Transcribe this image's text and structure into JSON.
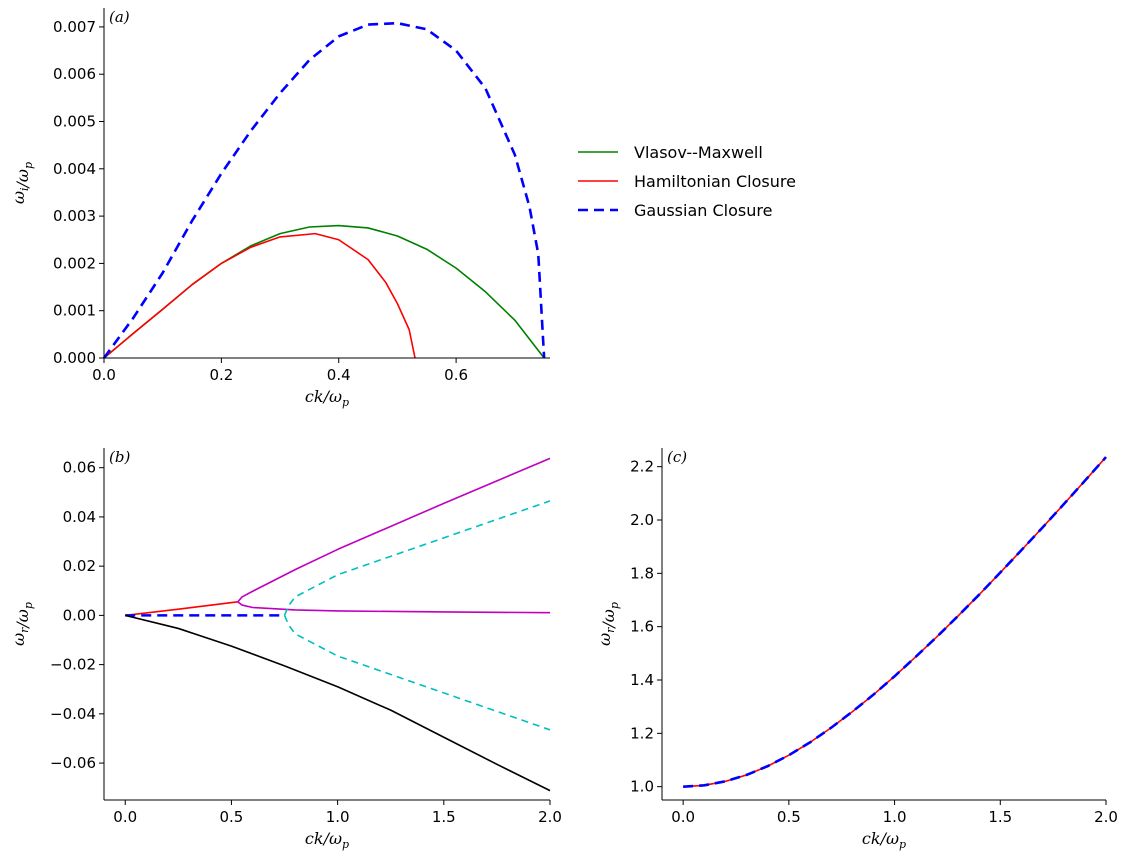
{
  "chart_data": [
    {
      "id": "a",
      "type": "line",
      "panel_label": "(a)",
      "xlabel": "ck/ω_p",
      "ylabel": "ω_i/ω_p",
      "xlim": [
        0,
        0.76
      ],
      "ylim": [
        0,
        0.0074
      ],
      "xticks": [
        0,
        0.2,
        0.4,
        0.6
      ],
      "xtick_labels": [
        "0.0",
        "0.2",
        "0.4",
        "0.6"
      ],
      "yticks": [
        0,
        0.001,
        0.002,
        0.003,
        0.004,
        0.005,
        0.006,
        0.007
      ],
      "ytick_labels": [
        "0.000",
        "0.001",
        "0.002",
        "0.003",
        "0.004",
        "0.005",
        "0.006",
        "0.007"
      ],
      "grid": false,
      "legend": "right",
      "series": [
        {
          "name": "Vlasov--Maxwell",
          "color": "#008000",
          "style": "solid",
          "x": [
            0,
            0.05,
            0.1,
            0.15,
            0.2,
            0.25,
            0.3,
            0.35,
            0.4,
            0.45,
            0.5,
            0.55,
            0.6,
            0.65,
            0.7,
            0.75
          ],
          "y": [
            0,
            0.00052,
            0.00103,
            0.00155,
            0.002,
            0.00237,
            0.00263,
            0.00277,
            0.0028,
            0.00275,
            0.00258,
            0.0023,
            0.0019,
            0.0014,
            0.0008,
            0.0
          ]
        },
        {
          "name": "Hamiltonian Closure",
          "color": "#ff0000",
          "style": "solid",
          "x": [
            0,
            0.05,
            0.1,
            0.15,
            0.2,
            0.25,
            0.3,
            0.36,
            0.4,
            0.45,
            0.48,
            0.5,
            0.52,
            0.525,
            0.53
          ],
          "y": [
            0,
            0.00052,
            0.00103,
            0.00155,
            0.002,
            0.00234,
            0.00256,
            0.00263,
            0.0025,
            0.00208,
            0.0016,
            0.00115,
            0.0006,
            0.0003,
            0.0
          ]
        },
        {
          "name": "Gaussian Closure",
          "color": "#0000ff",
          "style": "dashed",
          "x": [
            0,
            0.05,
            0.1,
            0.15,
            0.2,
            0.25,
            0.3,
            0.35,
            0.4,
            0.45,
            0.5,
            0.55,
            0.6,
            0.65,
            0.7,
            0.725,
            0.74,
            0.75
          ],
          "y": [
            0,
            0.00085,
            0.0018,
            0.0029,
            0.0039,
            0.0048,
            0.0056,
            0.0063,
            0.0068,
            0.00705,
            0.00708,
            0.00695,
            0.0065,
            0.0057,
            0.0043,
            0.0032,
            0.0022,
            0.0
          ]
        }
      ]
    },
    {
      "id": "b",
      "type": "line",
      "panel_label": "(b)",
      "xlabel": "ck/ω_p",
      "ylabel": "ω_r/ω_p",
      "xlim": [
        -0.1,
        2.0
      ],
      "ylim": [
        -0.075,
        0.068
      ],
      "xticks": [
        0,
        0.5,
        1.0,
        1.5,
        2.0
      ],
      "xtick_labels": [
        "0.0",
        "0.5",
        "1.0",
        "1.5",
        "2.0"
      ],
      "yticks": [
        -0.06,
        -0.04,
        -0.02,
        0,
        0.02,
        0.04,
        0.06
      ],
      "ytick_labels": [
        "−0.06",
        "−0.04",
        "−0.02",
        "0.00",
        "0.02",
        "0.04",
        "0.06"
      ],
      "grid": false,
      "series": [
        {
          "color": "#ff0000",
          "style": "solid",
          "x": [
            0,
            0.25,
            0.53
          ],
          "y": [
            0,
            0.0025,
            0.0055
          ]
        },
        {
          "color": "#bf00bf",
          "style": "solid",
          "x": [
            0.53,
            0.55,
            0.6,
            0.8,
            1.0,
            1.5,
            2.0
          ],
          "y": [
            0.0055,
            0.0075,
            0.0098,
            0.0186,
            0.0268,
            0.0455,
            0.0638
          ]
        },
        {
          "color": "#bf00bf",
          "style": "solid",
          "x": [
            0.53,
            0.55,
            0.6,
            0.8,
            1.0,
            1.5,
            2.0
          ],
          "y": [
            0.0055,
            0.0042,
            0.0032,
            0.0022,
            0.0018,
            0.0014,
            0.0011
          ]
        },
        {
          "color": "#0000ff",
          "style": "dashed",
          "x": [
            0,
            0.3,
            0.6,
            0.75
          ],
          "y": [
            0,
            0,
            0,
            0
          ]
        },
        {
          "color": "#00bfbf",
          "style": "dashed",
          "x": [
            0.75,
            0.77,
            0.8,
            1.0,
            1.5,
            2.0
          ],
          "y": [
            0,
            0.004,
            0.0075,
            0.0165,
            0.0315,
            0.0465
          ]
        },
        {
          "color": "#00bfbf",
          "style": "dashed",
          "x": [
            0.75,
            0.77,
            0.8,
            1.0,
            1.5,
            2.0
          ],
          "y": [
            0,
            -0.004,
            -0.0075,
            -0.0165,
            -0.0315,
            -0.0465
          ]
        },
        {
          "color": "#000000",
          "style": "solid",
          "x": [
            0,
            0.25,
            0.5,
            0.75,
            1.0,
            1.25,
            1.5,
            1.75,
            2.0
          ],
          "y": [
            0,
            -0.0053,
            -0.0125,
            -0.0205,
            -0.029,
            -0.0385,
            -0.0495,
            -0.0605,
            -0.0712
          ]
        }
      ]
    },
    {
      "id": "c",
      "type": "line",
      "panel_label": "(c)",
      "xlabel": "ck/ω_p",
      "ylabel": "ω_r/ω_p",
      "xlim": [
        -0.1,
        2.0
      ],
      "ylim": [
        0.95,
        2.27
      ],
      "xticks": [
        0,
        0.5,
        1.0,
        1.5,
        2.0
      ],
      "xtick_labels": [
        "0.0",
        "0.5",
        "1.0",
        "1.5",
        "2.0"
      ],
      "yticks": [
        1.0,
        1.2,
        1.4,
        1.6,
        1.8,
        2.0,
        2.2
      ],
      "ytick_labels": [
        "1.0",
        "1.2",
        "1.4",
        "1.6",
        "1.8",
        "2.0",
        "2.2"
      ],
      "grid": false,
      "series": [
        {
          "color": "#ff0000",
          "style": "solid",
          "x": [
            0,
            0.1,
            0.2,
            0.3,
            0.4,
            0.5,
            0.6,
            0.7,
            0.8,
            0.9,
            1.0,
            1.1,
            1.2,
            1.3,
            1.4,
            1.5,
            1.6,
            1.7,
            1.8,
            1.9,
            2.0
          ],
          "y": [
            1.0,
            1.005,
            1.02,
            1.044,
            1.077,
            1.118,
            1.166,
            1.221,
            1.281,
            1.345,
            1.414,
            1.487,
            1.562,
            1.64,
            1.72,
            1.803,
            1.887,
            1.972,
            2.059,
            2.147,
            2.236
          ]
        },
        {
          "color": "#0000ff",
          "style": "dashed",
          "x": [
            0,
            0.1,
            0.2,
            0.3,
            0.4,
            0.5,
            0.6,
            0.7,
            0.8,
            0.9,
            1.0,
            1.1,
            1.2,
            1.3,
            1.4,
            1.5,
            1.6,
            1.7,
            1.8,
            1.9,
            2.0
          ],
          "y": [
            1.0,
            1.005,
            1.02,
            1.044,
            1.077,
            1.118,
            1.166,
            1.221,
            1.281,
            1.345,
            1.414,
            1.487,
            1.562,
            1.64,
            1.72,
            1.803,
            1.887,
            1.972,
            2.059,
            2.147,
            2.236
          ]
        }
      ]
    }
  ]
}
